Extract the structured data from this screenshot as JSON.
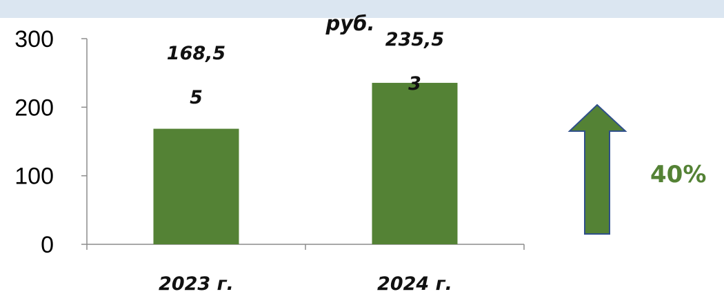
{
  "chart_data": {
    "type": "bar",
    "title": "руб.",
    "categories": [
      "2023 г.",
      "2024 г."
    ],
    "values": [
      168.55,
      235.53
    ],
    "data_labels": [
      [
        "168,5",
        "5"
      ],
      [
        "235,5",
        "3"
      ]
    ],
    "ylim": [
      0,
      300
    ],
    "yticks": [
      0,
      100,
      200,
      300
    ],
    "xlabel": "",
    "ylabel": "",
    "grid": false,
    "legend": "none",
    "bar_color": "#548235"
  },
  "annotation": {
    "percent_text": "40%",
    "percent_color": "#548235",
    "arrow_fill": "#548235",
    "arrow_stroke": "#2f4f8a",
    "arrow_icon": "up-arrow-icon"
  }
}
